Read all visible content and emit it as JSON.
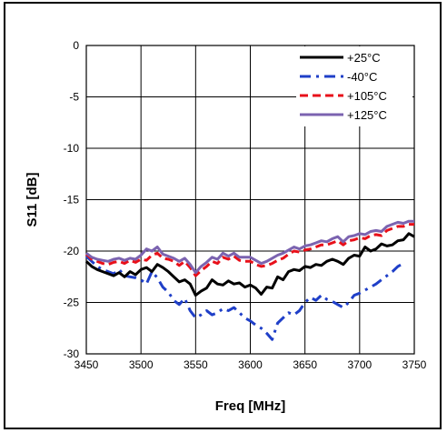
{
  "chart_data": {
    "type": "line",
    "title": "",
    "xlabel": "Freq [MHz]",
    "ylabel": "S11 [dB]",
    "xlim": [
      3450,
      3750
    ],
    "ylim": [
      -30,
      0
    ],
    "xticks": [
      3450,
      3500,
      3550,
      3600,
      3650,
      3700,
      3750
    ],
    "yticks": [
      0,
      -5,
      -10,
      -15,
      -20,
      -25,
      -30
    ],
    "grid": true,
    "legend_position": "top-right",
    "series": [
      {
        "name": "+25°C",
        "color": "#000000",
        "style": "solid",
        "x": [
          3450,
          3455,
          3460,
          3465,
          3470,
          3475,
          3480,
          3485,
          3490,
          3495,
          3500,
          3505,
          3510,
          3515,
          3520,
          3525,
          3530,
          3535,
          3540,
          3545,
          3550,
          3555,
          3560,
          3565,
          3570,
          3575,
          3580,
          3585,
          3590,
          3595,
          3600,
          3605,
          3610,
          3615,
          3620,
          3625,
          3630,
          3635,
          3640,
          3645,
          3650,
          3655,
          3660,
          3665,
          3670,
          3675,
          3680,
          3685,
          3690,
          3695,
          3700,
          3705,
          3710,
          3715,
          3720,
          3725,
          3730,
          3735,
          3740,
          3745,
          3750
        ],
        "y": [
          -21.0,
          -21.5,
          -21.8,
          -22.0,
          -22.2,
          -22.4,
          -22.1,
          -22.5,
          -22.0,
          -22.3,
          -21.8,
          -21.6,
          -22.0,
          -21.3,
          -21.6,
          -22.0,
          -22.5,
          -23.0,
          -22.8,
          -23.2,
          -24.3,
          -23.9,
          -23.6,
          -22.8,
          -23.2,
          -23.3,
          -22.9,
          -23.2,
          -23.1,
          -23.5,
          -23.3,
          -23.6,
          -24.2,
          -23.5,
          -23.6,
          -22.5,
          -22.8,
          -22.0,
          -21.8,
          -21.9,
          -21.5,
          -21.6,
          -21.3,
          -21.4,
          -21.0,
          -20.8,
          -21.0,
          -21.3,
          -20.7,
          -20.4,
          -20.5,
          -19.6,
          -20.0,
          -19.8,
          -19.3,
          -19.5,
          -19.4,
          -19.0,
          -18.9,
          -18.3,
          -18.6
        ]
      },
      {
        "name": "-40°C",
        "color": "#1f3fc8",
        "style": "dashdot",
        "x": [
          3450,
          3455,
          3460,
          3465,
          3470,
          3475,
          3480,
          3485,
          3490,
          3495,
          3500,
          3505,
          3510,
          3515,
          3520,
          3525,
          3530,
          3535,
          3540,
          3545,
          3550,
          3555,
          3560,
          3565,
          3570,
          3575,
          3580,
          3585,
          3590,
          3595,
          3600,
          3605,
          3610,
          3615,
          3620,
          3625,
          3630,
          3635,
          3640,
          3645,
          3650,
          3655,
          3660,
          3665,
          3670,
          3675,
          3680,
          3685,
          3690,
          3695,
          3700,
          3705,
          3710,
          3715,
          3720,
          3725,
          3730,
          3735,
          3740
        ],
        "y": [
          -20.5,
          -21.0,
          -21.5,
          -21.8,
          -22.0,
          -22.2,
          -21.8,
          -22.4,
          -22.5,
          -22.6,
          -22.8,
          -23.2,
          -22.0,
          -22.6,
          -23.5,
          -24.0,
          -24.8,
          -25.2,
          -24.6,
          -25.8,
          -26.5,
          -26.2,
          -25.8,
          -26.2,
          -26.0,
          -25.6,
          -25.8,
          -25.5,
          -26.0,
          -26.5,
          -26.8,
          -27.2,
          -27.5,
          -28.0,
          -28.6,
          -27.0,
          -26.5,
          -26.0,
          -26.2,
          -25.8,
          -25.0,
          -24.5,
          -24.8,
          -24.3,
          -24.7,
          -24.9,
          -25.2,
          -25.5,
          -25.0,
          -24.3,
          -24.1,
          -23.8,
          -23.5,
          -23.2,
          -22.8,
          -22.4,
          -22.0,
          -21.5,
          -21.2
        ]
      },
      {
        "name": "+105°C",
        "color": "#e8101a",
        "style": "dashed",
        "x": [
          3450,
          3455,
          3460,
          3465,
          3470,
          3475,
          3480,
          3485,
          3490,
          3495,
          3500,
          3505,
          3510,
          3515,
          3520,
          3525,
          3530,
          3535,
          3540,
          3545,
          3550,
          3555,
          3560,
          3565,
          3570,
          3575,
          3580,
          3585,
          3590,
          3595,
          3600,
          3605,
          3610,
          3615,
          3620,
          3625,
          3630,
          3635,
          3640,
          3645,
          3650,
          3655,
          3660,
          3665,
          3670,
          3675,
          3680,
          3685,
          3690,
          3695,
          3700,
          3705,
          3710,
          3715,
          3720,
          3725,
          3730,
          3735,
          3740,
          3745,
          3750
        ],
        "y": [
          -20.3,
          -20.8,
          -21.0,
          -21.2,
          -21.3,
          -21.1,
          -21.0,
          -21.2,
          -20.9,
          -21.1,
          -20.8,
          -20.9,
          -20.4,
          -20.2,
          -20.7,
          -20.8,
          -21.0,
          -21.4,
          -21.0,
          -21.6,
          -22.4,
          -21.9,
          -21.5,
          -21.0,
          -21.2,
          -20.6,
          -20.8,
          -20.5,
          -20.9,
          -21.0,
          -21.0,
          -21.3,
          -21.5,
          -21.4,
          -21.2,
          -20.9,
          -20.7,
          -20.3,
          -20.0,
          -20.1,
          -19.9,
          -19.8,
          -19.6,
          -19.4,
          -19.4,
          -19.2,
          -19.0,
          -19.4,
          -19.0,
          -18.9,
          -18.7,
          -18.8,
          -18.5,
          -18.4,
          -18.5,
          -18.0,
          -17.8,
          -17.6,
          -17.6,
          -17.4,
          -17.4
        ]
      },
      {
        "name": "+125°C",
        "color": "#7b63b0",
        "style": "solid",
        "x": [
          3450,
          3455,
          3460,
          3465,
          3470,
          3475,
          3480,
          3485,
          3490,
          3495,
          3500,
          3505,
          3510,
          3515,
          3520,
          3525,
          3530,
          3535,
          3540,
          3545,
          3550,
          3555,
          3560,
          3565,
          3570,
          3575,
          3580,
          3585,
          3590,
          3595,
          3600,
          3605,
          3610,
          3615,
          3620,
          3625,
          3630,
          3635,
          3640,
          3645,
          3650,
          3655,
          3660,
          3665,
          3670,
          3675,
          3680,
          3685,
          3690,
          3695,
          3700,
          3705,
          3710,
          3715,
          3720,
          3725,
          3730,
          3735,
          3740,
          3745,
          3750
        ],
        "y": [
          -20.2,
          -20.6,
          -20.8,
          -20.9,
          -21.0,
          -20.8,
          -20.7,
          -20.9,
          -20.7,
          -20.8,
          -20.4,
          -19.8,
          -20.0,
          -19.6,
          -20.3,
          -20.5,
          -20.7,
          -21.0,
          -20.7,
          -21.3,
          -22.1,
          -21.5,
          -21.1,
          -20.6,
          -20.8,
          -20.2,
          -20.5,
          -20.2,
          -20.6,
          -20.6,
          -20.6,
          -20.9,
          -21.2,
          -21.0,
          -20.7,
          -20.4,
          -20.2,
          -19.9,
          -19.6,
          -19.8,
          -19.5,
          -19.4,
          -19.2,
          -19.0,
          -19.1,
          -18.8,
          -18.6,
          -19.1,
          -18.6,
          -18.5,
          -18.3,
          -18.4,
          -18.1,
          -18.0,
          -18.1,
          -17.6,
          -17.4,
          -17.2,
          -17.3,
          -17.1,
          -17.1
        ]
      }
    ]
  }
}
